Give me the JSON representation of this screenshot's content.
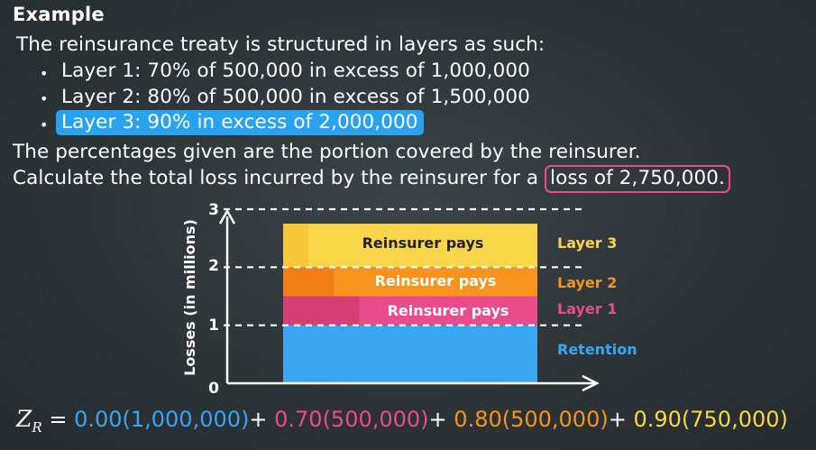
{
  "heading": "Example",
  "intro": "The reinsurance treaty is structured in layers as such:",
  "bullets": [
    "Layer 1: 70% of 500,000 in excess of 1,000,000",
    "Layer 2: 80% of 500,000 in excess of 1,500,000",
    "Layer 3: 90% in excess of 2,000,000"
  ],
  "note": "The percentages given are the portion covered by the reinsurer.",
  "question_prefix": "Calculate the total loss incurred by the reinsurer for a",
  "question_highlight": "loss of 2,750,000.",
  "chart": {
    "ylabel": "Losses (in millions)",
    "yticks": [
      "0",
      "1",
      "2",
      "3"
    ],
    "bar_labels": [
      "Reinsurer pays",
      "Reinsurer pays",
      "Reinsurer pays"
    ],
    "layer_labels": [
      "Layer 3",
      "Layer 2",
      "Layer 1",
      "Retention"
    ]
  },
  "chart_data": {
    "type": "bar",
    "ylabel": "Losses (in millions)",
    "ylim": [
      0,
      3
    ],
    "total_loss": 2.75,
    "segments": [
      {
        "name": "Retention",
        "from": 0,
        "to": 1,
        "reinsurer_share": 0
      },
      {
        "name": "Layer 1",
        "from": 1,
        "to": 1.5,
        "reinsurer_share": 0.7
      },
      {
        "name": "Layer 2",
        "from": 1.5,
        "to": 2,
        "reinsurer_share": 0.8
      },
      {
        "name": "Layer 3",
        "from": 2,
        "to": 2.75,
        "reinsurer_share": 0.9
      }
    ]
  },
  "formula": {
    "lhs": "Z",
    "lhs_sub": "R",
    "eq": "=",
    "terms": [
      "0.00(1,000,000)",
      "0.70(500,000)",
      "0.80(500,000)",
      "0.90(750,000)"
    ],
    "plus": "+"
  },
  "colors": {
    "retention": "#3aa5f2",
    "layer1": "#ea4c8b",
    "layer1_dark": "#d63f74",
    "layer2": "#f7941d",
    "layer2_dark": "#f07f18",
    "layer3": "#f9d54a",
    "layer3_dark": "#f6c73a"
  }
}
